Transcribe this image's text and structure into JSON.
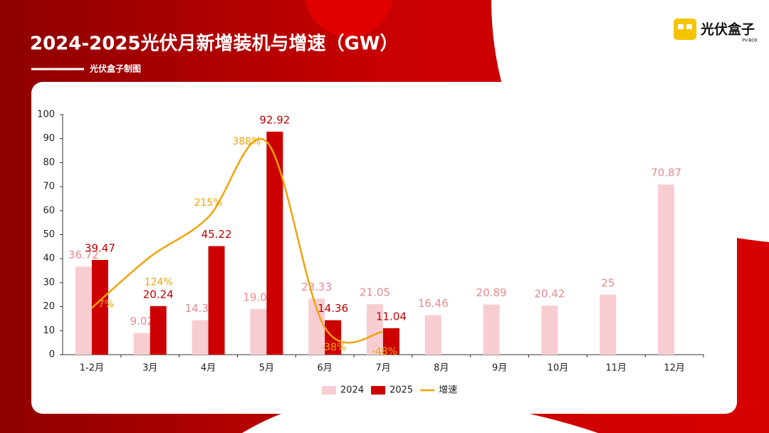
{
  "logo": {
    "name": "光伏盒子",
    "sub": "PV-BOX"
  },
  "chart_data": {
    "type": "bar",
    "title": "2024-2025光伏月新增装机与增速（GW）",
    "subtitle": "光伏盒子制图",
    "categories": [
      "1-2月",
      "3月",
      "4月",
      "5月",
      "6月",
      "7月",
      "8月",
      "9月",
      "10月",
      "11月",
      "12月"
    ],
    "series": [
      {
        "name": "2024",
        "color": "#f8cdd2",
        "label_color": "#e58a8f",
        "values": [
          36.72,
          9.02,
          14.37,
          19.04,
          23.33,
          21.05,
          16.46,
          20.89,
          20.42,
          25,
          70.87
        ]
      },
      {
        "name": "2025",
        "color": "#cc0000",
        "label_color": "#c00000",
        "values": [
          39.47,
          20.24,
          45.22,
          92.92,
          14.36,
          11.04,
          null,
          null,
          null,
          null,
          null
        ]
      },
      {
        "name": "增速",
        "type": "line",
        "axis": "y2",
        "color": "#f0a30a",
        "smooth": true,
        "values": [
          7,
          124,
          215,
          388,
          -38,
          -48,
          null,
          null,
          null,
          null,
          null
        ],
        "value_labels": [
          "7%",
          "124%",
          "215%",
          "388%",
          "-38%",
          "-48%",
          null,
          null,
          null,
          null,
          null
        ]
      }
    ],
    "ylim": [
      0,
      100
    ],
    "yticks": [
      0,
      10,
      20,
      30,
      40,
      50,
      60,
      70,
      80,
      90,
      100
    ],
    "y2lim": [
      -100,
      450
    ],
    "grid": false,
    "legend": "bottom"
  }
}
